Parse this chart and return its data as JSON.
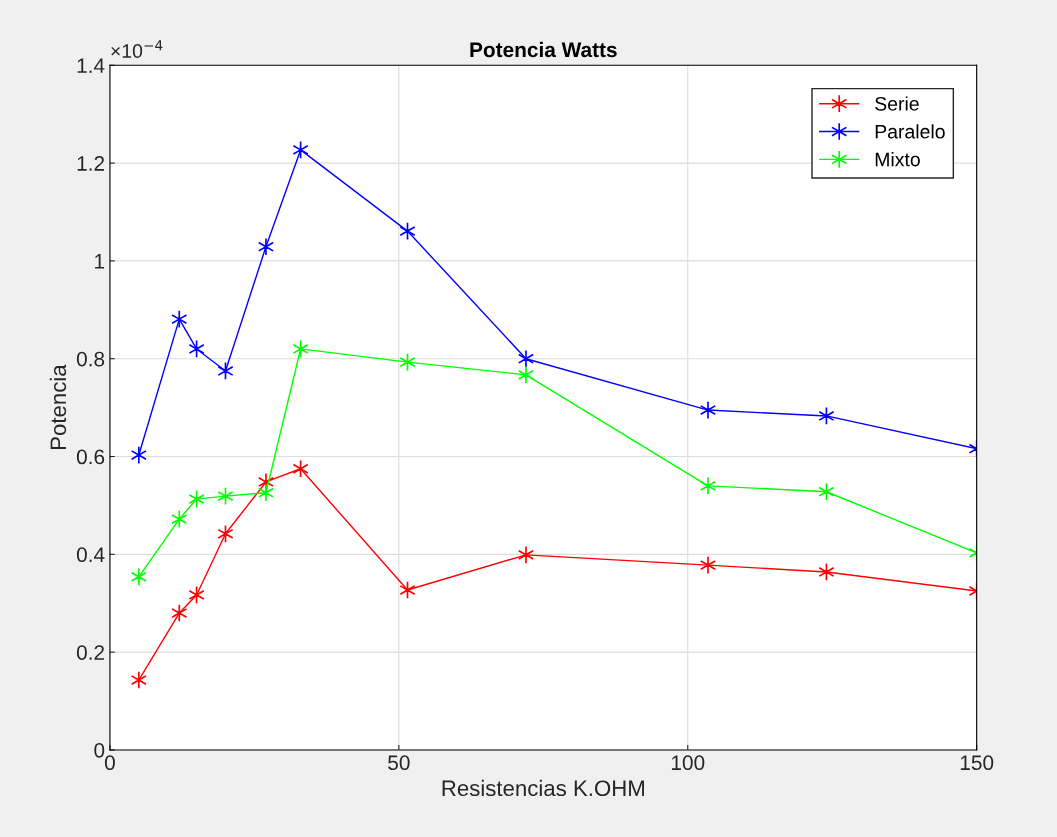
{
  "chart_data": {
    "type": "line",
    "title": "Potencia Watts",
    "xlabel": "Resistencias K.OHM",
    "ylabel": "Potencia",
    "annotations": [
      "×10$^{−4}$"
    ],
    "x": [
      5,
      12,
      15,
      20,
      27,
      33,
      51.5,
      72,
      103.5,
      124,
      150
    ],
    "series": [
      {
        "name": "Serie",
        "color": "#ff0000",
        "values": [
          0.143,
          0.28,
          0.317,
          0.442,
          0.548,
          0.575,
          0.327,
          0.399,
          0.378,
          0.364,
          0.325
        ]
      },
      {
        "name": "Paralelo",
        "color": "#0000ff",
        "values": [
          0.603,
          0.881,
          0.82,
          0.775,
          1.029,
          1.227,
          1.061,
          0.8,
          0.695,
          0.683,
          0.616
        ]
      },
      {
        "name": "Mixto",
        "color": "#00ff00",
        "values": [
          0.354,
          0.472,
          0.513,
          0.519,
          0.526,
          0.82,
          0.793,
          0.767,
          0.54,
          0.528,
          0.403
        ]
      }
    ],
    "xlim": [
      0,
      150
    ],
    "xticks": [
      0,
      50,
      100,
      150
    ],
    "ylim": [
      0,
      1.4
    ],
    "yticks": [
      0,
      0.2,
      0.4,
      0.6,
      0.8,
      1,
      1.2,
      1.4
    ],
    "grid": true,
    "legend": "top right",
    "marker": "cross",
    "line_style": "solid"
  }
}
